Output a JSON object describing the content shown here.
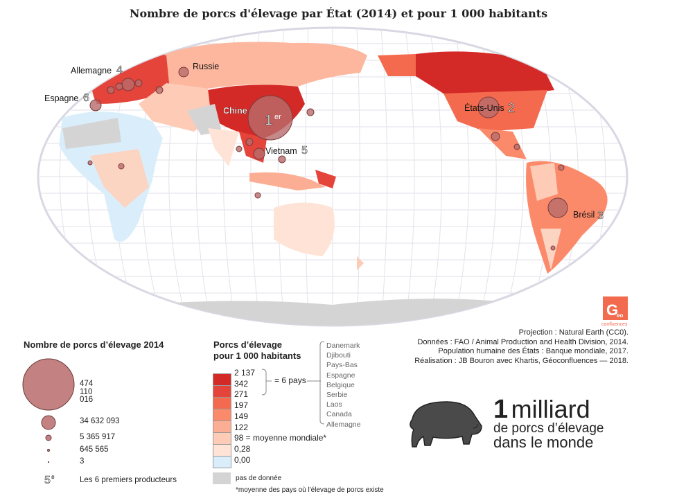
{
  "title": "Nombre de porcs d'élevage par État (2014) et pour 1 000 habitants",
  "map_labels": {
    "allemagne": "Allemagne",
    "allemagne_rank": "4",
    "espagne": "Espagne",
    "espagne_rank": "6",
    "russie": "Russie",
    "chine": "Chine",
    "chine_rank": "1",
    "vietnam": "Vietnam",
    "vietnam_rank": "5",
    "usa": "États-Unis",
    "usa_rank": "2",
    "bresil": "Brésil",
    "bresil_rank": "3",
    "sup_e": "e",
    "sup_er": "er"
  },
  "logo": {
    "text": "Geo",
    "sub": "confluences"
  },
  "sources": [
    "Projection : Natural Earth (CC0).",
    "Données : FAO / Animal Production and Health Division, 2014.",
    "Population humaine des États : Banque mondiale, 2017.",
    "Réalisation : JB Bouron avec Khartis, Géoconfluences — 2018."
  ],
  "legend_size": {
    "title": "Nombre de porcs d’élevage 2014",
    "values": [
      "474 110 016",
      "34 632 093",
      "5 365 917",
      "645 565",
      "3"
    ],
    "rank_symbol": "5",
    "rank_sup": "e",
    "rank_label": "Les 6 premiers producteurs"
  },
  "legend_color": {
    "title_line1": "Porcs d’élevage",
    "title_line2": "pour 1 000 habitants",
    "breaks": [
      "2 137",
      "342",
      "271",
      "197",
      "149",
      "122",
      "98 = moyenne mondiale*",
      "0,28",
      "0,00"
    ],
    "colors": [
      "#d42a27",
      "#e5443a",
      "#f46a4e",
      "#fb8a6b",
      "#fcae94",
      "#fdcbb6",
      "#fee3d6",
      "#d9eefa"
    ],
    "group_label": "= 6 pays",
    "countries": [
      "Danemark",
      "Djibouti",
      "Pays-Bas",
      "Espagne",
      "Belgique",
      "Serbie",
      "Laos",
      "Canada",
      "Allemagne"
    ],
    "no_data": "pas de donnée",
    "no_data_color": "#d4d4d4",
    "footnote": "*moyenne des pays où l'élevage de porcs existe"
  },
  "headline": {
    "number": "1",
    "word": "milliard",
    "line2": "de porcs d’élevage",
    "line3": "dans le monde"
  }
}
